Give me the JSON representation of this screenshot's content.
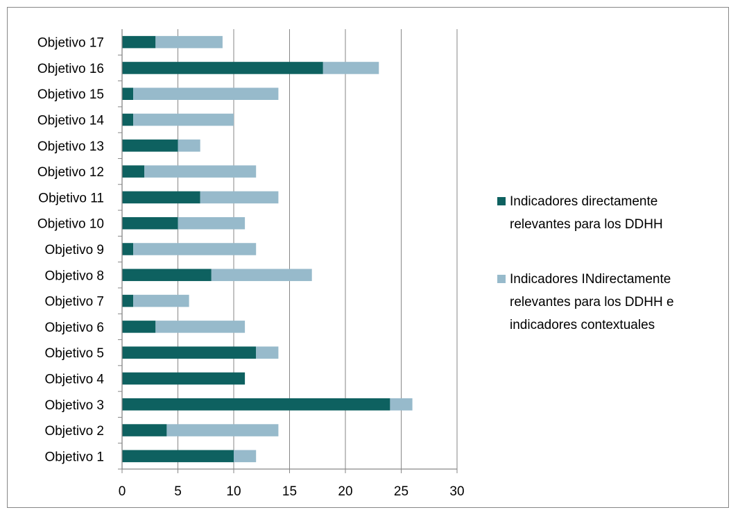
{
  "chart_data": {
    "type": "bar",
    "orientation": "horizontal",
    "stacked": true,
    "categories": [
      "Objetivo 1",
      "Objetivo 2",
      "Objetivo 3",
      "Objetivo 4",
      "Objetivo 5",
      "Objetivo 6",
      "Objetivo 7",
      "Objetivo 8",
      "Objetivo 9",
      "Objetivo 10",
      "Objetivo 11",
      "Objetivo 12",
      "Objetivo 13",
      "Objetivo 14",
      "Objetivo 15",
      "Objetivo 16",
      "Objetivo 17"
    ],
    "series": [
      {
        "name": "Indicadores directamente relevantes para los DDHH",
        "legend_lines": [
          " Indicadores directamente",
          "relevantes para los DDHH"
        ],
        "color": "#0e6160",
        "values": [
          10,
          4,
          24,
          11,
          12,
          3,
          1,
          8,
          1,
          5,
          7,
          2,
          5,
          1,
          1,
          18,
          3
        ]
      },
      {
        "name": "Indicadores INdirectamente relevantes para los DDHH e indicadores contextuales",
        "legend_lines": [
          "Indicadores INdirectamente",
          "relevantes para los DDHH e",
          "indicadores contextuales"
        ],
        "color": "#97bacb",
        "values": [
          2,
          10,
          2,
          0,
          2,
          8,
          5,
          9,
          11,
          6,
          7,
          10,
          2,
          9,
          13,
          5,
          6
        ]
      }
    ],
    "x_ticks": [
      "0",
      "5",
      "10",
      "15",
      "20",
      "25",
      "30"
    ],
    "xlim": [
      0,
      30
    ],
    "grid": "vertical",
    "legend_position": "right"
  }
}
